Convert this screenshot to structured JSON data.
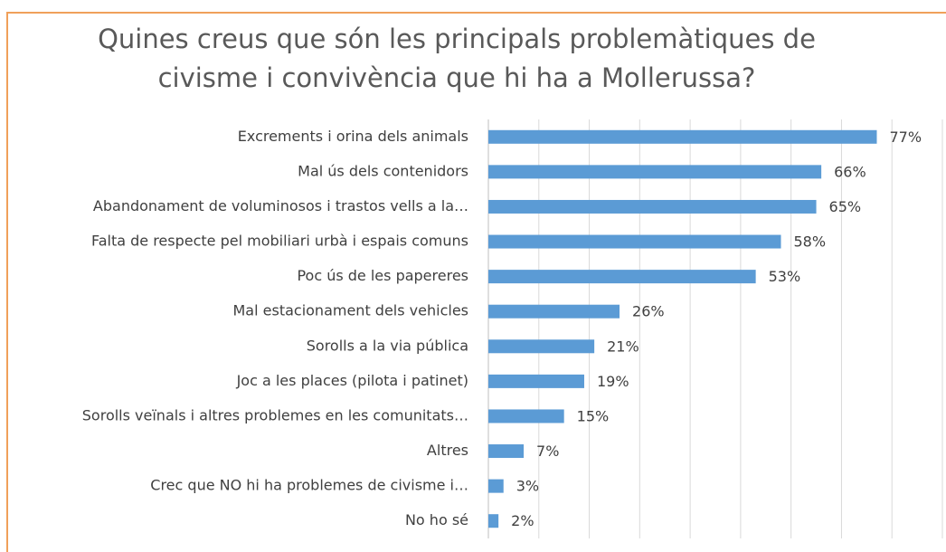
{
  "chart_data": {
    "type": "bar",
    "orientation": "horizontal",
    "title": [
      "Quines creus que són les principals problemàtiques de",
      "civisme i convivència que hi ha a Mollerussa?"
    ],
    "categories": [
      "Excrements i orina dels animals",
      "Mal ús dels contenidors",
      "Abandonament de voluminosos i trastos vells a la…",
      "Falta de respecte pel mobiliari urbà i espais comuns",
      "Poc ús de les papereres",
      "Mal estacionament dels vehicles",
      "Sorolls a la via pública",
      "Joc a les places (pilota i patinet)",
      "Sorolls veïnals i altres problemes en les comunitats…",
      "Altres",
      "Crec que NO hi ha problemes de civisme i…",
      "No ho sé"
    ],
    "values": [
      77,
      66,
      65,
      58,
      53,
      26,
      21,
      19,
      15,
      7,
      3,
      2
    ],
    "value_labels": [
      "77%",
      "66%",
      "65%",
      "58%",
      "53%",
      "26%",
      "21%",
      "19%",
      "15%",
      "7%",
      "3%",
      "2%"
    ],
    "color": "#5b9bd5",
    "xlim": [
      0,
      90
    ],
    "xticks": [
      0,
      10,
      20,
      30,
      40,
      50,
      60,
      70,
      80,
      90
    ],
    "grid": true
  }
}
